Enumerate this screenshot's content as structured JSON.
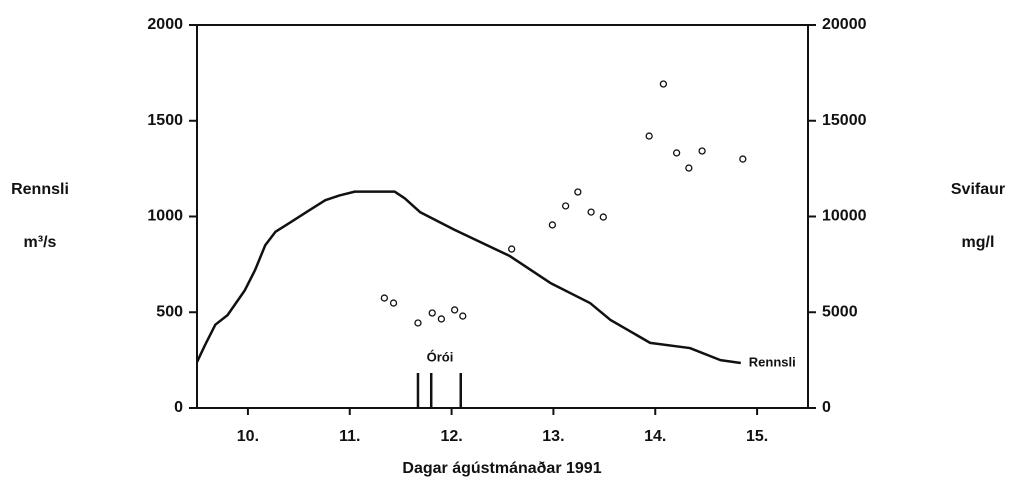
{
  "chart_data": {
    "type": "line",
    "x_label": "Dagar ágústmánaðar 1991",
    "y_label": [
      "Rennsli",
      "m³/s"
    ],
    "y2_label": [
      "Svifaur",
      "mg/l"
    ],
    "xlim": [
      10,
      16
    ],
    "xticks": [
      {
        "value": 10.5,
        "label": "10."
      },
      {
        "value": 11.5,
        "label": "11."
      },
      {
        "value": 12.5,
        "label": "12."
      },
      {
        "value": 13.5,
        "label": "13."
      },
      {
        "value": 14.5,
        "label": "14."
      },
      {
        "value": 15.5,
        "label": "15."
      }
    ],
    "ylim": [
      0,
      2000
    ],
    "yticks": [
      0,
      500,
      1000,
      1500,
      2000
    ],
    "y2lim": [
      0,
      20000
    ],
    "y2ticks": [
      0,
      5000,
      10000,
      15000,
      20000
    ],
    "series": [
      {
        "name": "Rennsli",
        "type": "line",
        "axis": "y",
        "color": "#111111",
        "x": [
          10.0,
          10.08,
          10.18,
          10.3,
          10.47,
          10.57,
          10.67,
          10.77,
          10.92,
          11.11,
          11.26,
          11.4,
          11.55,
          11.94,
          12.04,
          12.19,
          12.53,
          13.07,
          13.47,
          13.86,
          14.06,
          14.45,
          14.84,
          15.14,
          15.34
        ],
        "values": [
          240,
          330,
          435,
          485,
          615,
          720,
          850,
          920,
          970,
          1035,
          1085,
          1110,
          1130,
          1130,
          1095,
          1023,
          930,
          794,
          653,
          548,
          460,
          340,
          313,
          250,
          235
        ]
      },
      {
        "name": "Svifaur",
        "type": "scatter",
        "axis": "y2",
        "color": "#111111",
        "x": [
          11.84,
          11.93,
          12.17,
          12.31,
          12.4,
          12.53,
          12.61,
          13.09,
          13.49,
          13.62,
          13.74,
          13.87,
          13.99,
          14.44,
          14.58,
          14.71,
          14.83,
          14.96,
          15.36
        ],
        "values": [
          5740,
          5480,
          4440,
          4960,
          4650,
          5120,
          4800,
          8300,
          9560,
          10550,
          11280,
          10230,
          9970,
          14200,
          16920,
          13320,
          12530,
          13420,
          13000
        ]
      }
    ],
    "annotation": {
      "label": "Órói",
      "x": [
        12.17,
        12.3,
        12.59
      ]
    }
  }
}
